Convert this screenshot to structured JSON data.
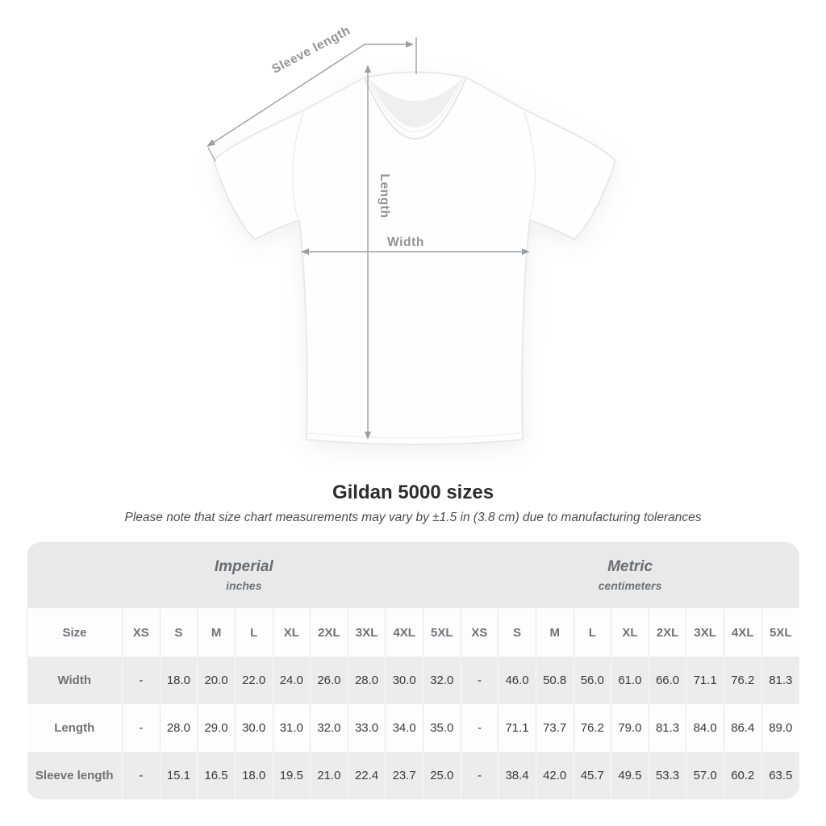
{
  "figure": {
    "labels": {
      "sleeve_length": "Sleeve length",
      "length": "Length",
      "width": "Width"
    },
    "annotation_color": "#9aa0a5"
  },
  "title": "Gildan 5000 sizes",
  "subtitle": "Please note that size chart measurements may vary by ±1.5 in (3.8 cm) due to manufacturing tolerances",
  "table": {
    "size_header": "Size",
    "groups": [
      {
        "label": "Imperial",
        "sublabel": "inches"
      },
      {
        "label": "Metric",
        "sublabel": "centimeters"
      }
    ],
    "sizes": [
      "XS",
      "S",
      "M",
      "L",
      "XL",
      "2XL",
      "3XL",
      "4XL",
      "5XL"
    ],
    "rows": [
      {
        "label": "Width",
        "imperial": [
          "-",
          "18.0",
          "20.0",
          "22.0",
          "24.0",
          "26.0",
          "28.0",
          "30.0",
          "32.0"
        ],
        "metric": [
          "-",
          "46.0",
          "50.8",
          "56.0",
          "61.0",
          "66.0",
          "71.1",
          "76.2",
          "81.3"
        ]
      },
      {
        "label": "Length",
        "imperial": [
          "-",
          "28.0",
          "29.0",
          "30.0",
          "31.0",
          "32.0",
          "33.0",
          "34.0",
          "35.0"
        ],
        "metric": [
          "-",
          "71.1",
          "73.7",
          "76.2",
          "79.0",
          "81.3",
          "84.0",
          "86.4",
          "89.0"
        ]
      },
      {
        "label": "Sleeve length",
        "imperial": [
          "-",
          "15.1",
          "16.5",
          "18.0",
          "19.5",
          "21.0",
          "22.4",
          "23.7",
          "25.0"
        ],
        "metric": [
          "-",
          "38.4",
          "42.0",
          "45.7",
          "49.5",
          "53.3",
          "57.0",
          "60.2",
          "63.5"
        ]
      }
    ]
  },
  "chart_data": {
    "type": "table",
    "title": "Gildan 5000 sizes",
    "note": "Please note that size chart measurements may vary by ±1.5 in (3.8 cm) due to manufacturing tolerances",
    "columns": [
      "XS",
      "S",
      "M",
      "L",
      "XL",
      "2XL",
      "3XL",
      "4XL",
      "5XL"
    ],
    "series": [
      {
        "name": "Width (inches)",
        "values": [
          null,
          18.0,
          20.0,
          22.0,
          24.0,
          26.0,
          28.0,
          30.0,
          32.0
        ]
      },
      {
        "name": "Length (inches)",
        "values": [
          null,
          28.0,
          29.0,
          30.0,
          31.0,
          32.0,
          33.0,
          34.0,
          35.0
        ]
      },
      {
        "name": "Sleeve length (inches)",
        "values": [
          null,
          15.1,
          16.5,
          18.0,
          19.5,
          21.0,
          22.4,
          23.7,
          25.0
        ]
      },
      {
        "name": "Width (centimeters)",
        "values": [
          null,
          46.0,
          50.8,
          56.0,
          61.0,
          66.0,
          71.1,
          76.2,
          81.3
        ]
      },
      {
        "name": "Length (centimeters)",
        "values": [
          null,
          71.1,
          73.7,
          76.2,
          79.0,
          81.3,
          84.0,
          86.4,
          89.0
        ]
      },
      {
        "name": "Sleeve length (centimeters)",
        "values": [
          null,
          38.4,
          42.0,
          45.7,
          49.5,
          53.3,
          57.0,
          60.2,
          63.5
        ]
      }
    ]
  }
}
